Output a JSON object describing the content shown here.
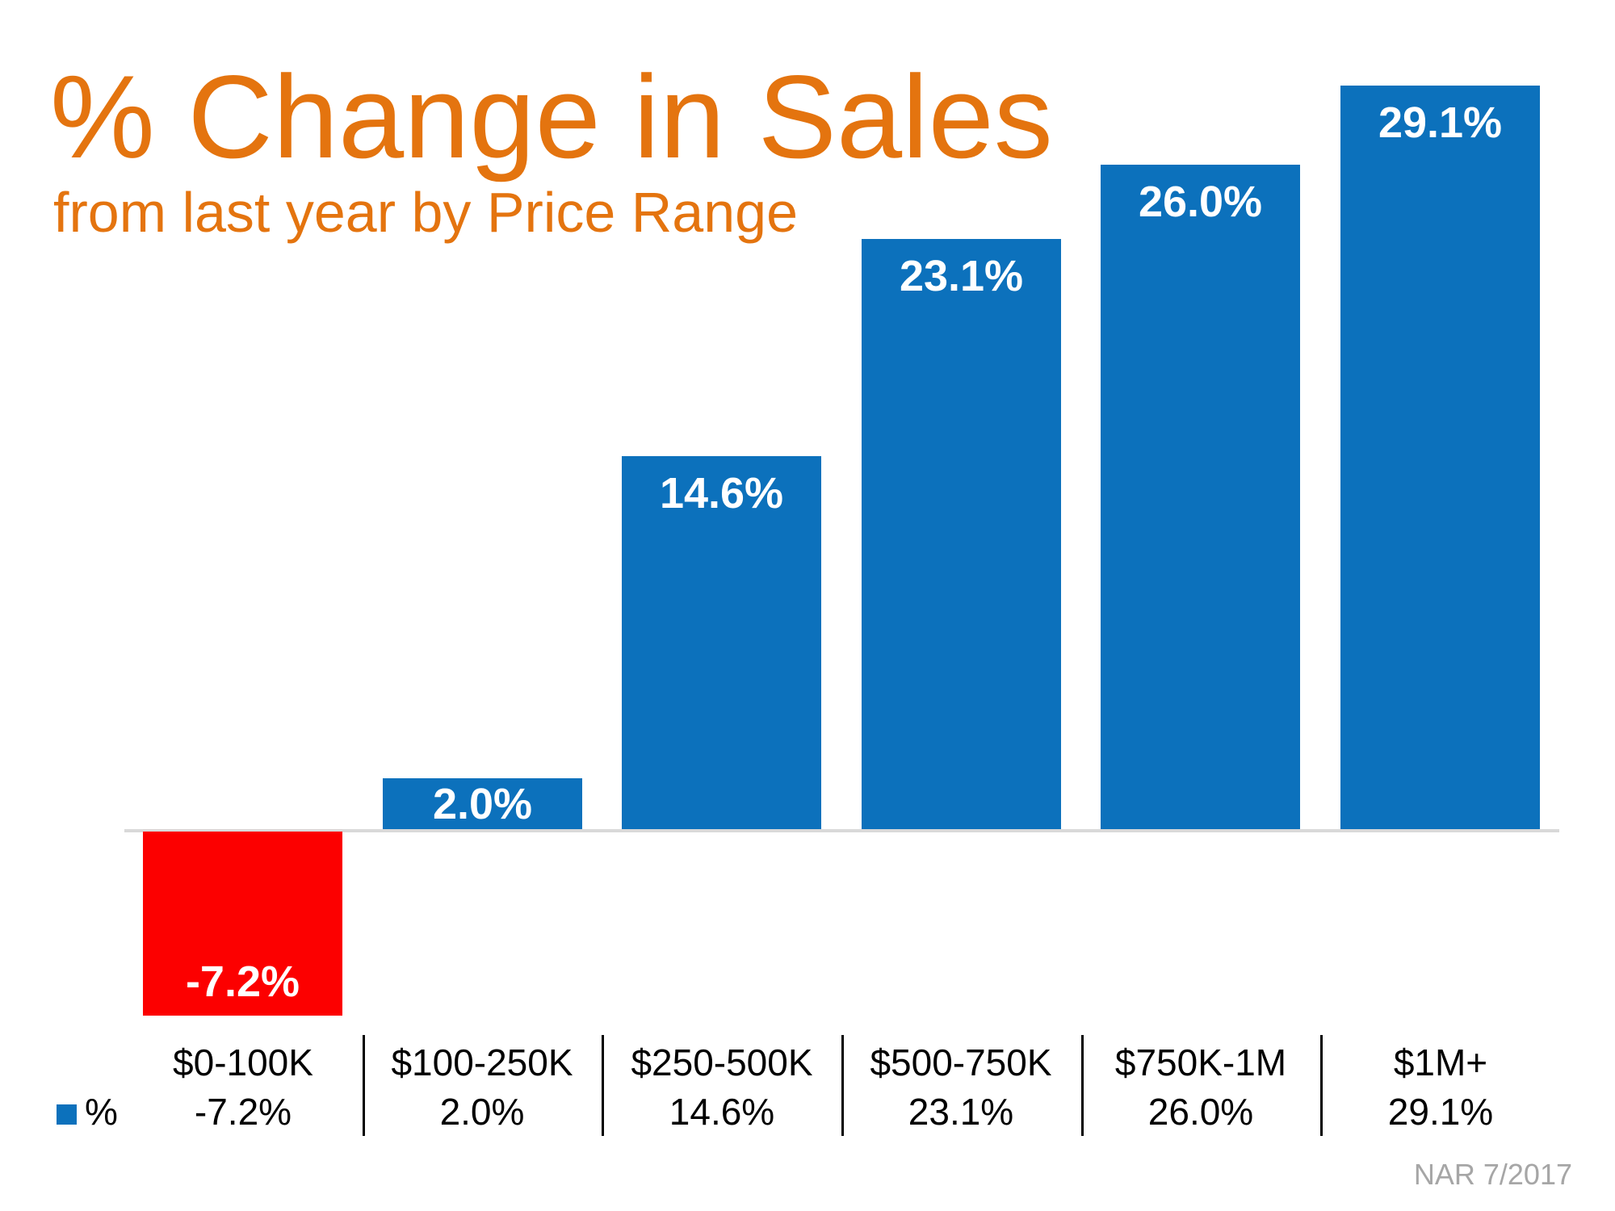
{
  "header": {
    "title": "% Change in Sales",
    "subtitle": "from last year by Price Range"
  },
  "legend": {
    "series_label": "%"
  },
  "footer": {
    "source": "NAR 7/2017"
  },
  "colors": {
    "background": "#FFFFFF",
    "title_orange": "#E4740F",
    "bar_positive": "#0C71BC",
    "bar_negative": "#FC0000",
    "bar_label": "#FFFFFF",
    "axis_line": "#D9D9D9",
    "table_text": "#000000",
    "table_divider": "#000000",
    "source_text": "#A6A6A6"
  },
  "chart_data": {
    "type": "bar",
    "title": "% Change in Sales",
    "subtitle": "from last year by Price Range",
    "series_name": "%",
    "categories": [
      "$0-100K",
      "$100-250K",
      "$250-500K",
      "$500-750K",
      "$750K-1M",
      "$1M+"
    ],
    "values": [
      -7.2,
      2.0,
      14.6,
      23.1,
      26.0,
      29.1
    ],
    "labels": [
      "-7.2%",
      "2.0%",
      "14.6%",
      "23.1%",
      "26.0%",
      "29.1%"
    ],
    "bar_colors": [
      "#FC0000",
      "#0C71BC",
      "#0C71BC",
      "#0C71BC",
      "#0C71BC",
      "#0C71BC"
    ],
    "baseline": 0,
    "ylim": [
      -10,
      32
    ],
    "grid": false,
    "data_labels": "inside",
    "legend_position": "bottom-left",
    "x_axis_table": true,
    "source": "NAR 7/2017"
  }
}
